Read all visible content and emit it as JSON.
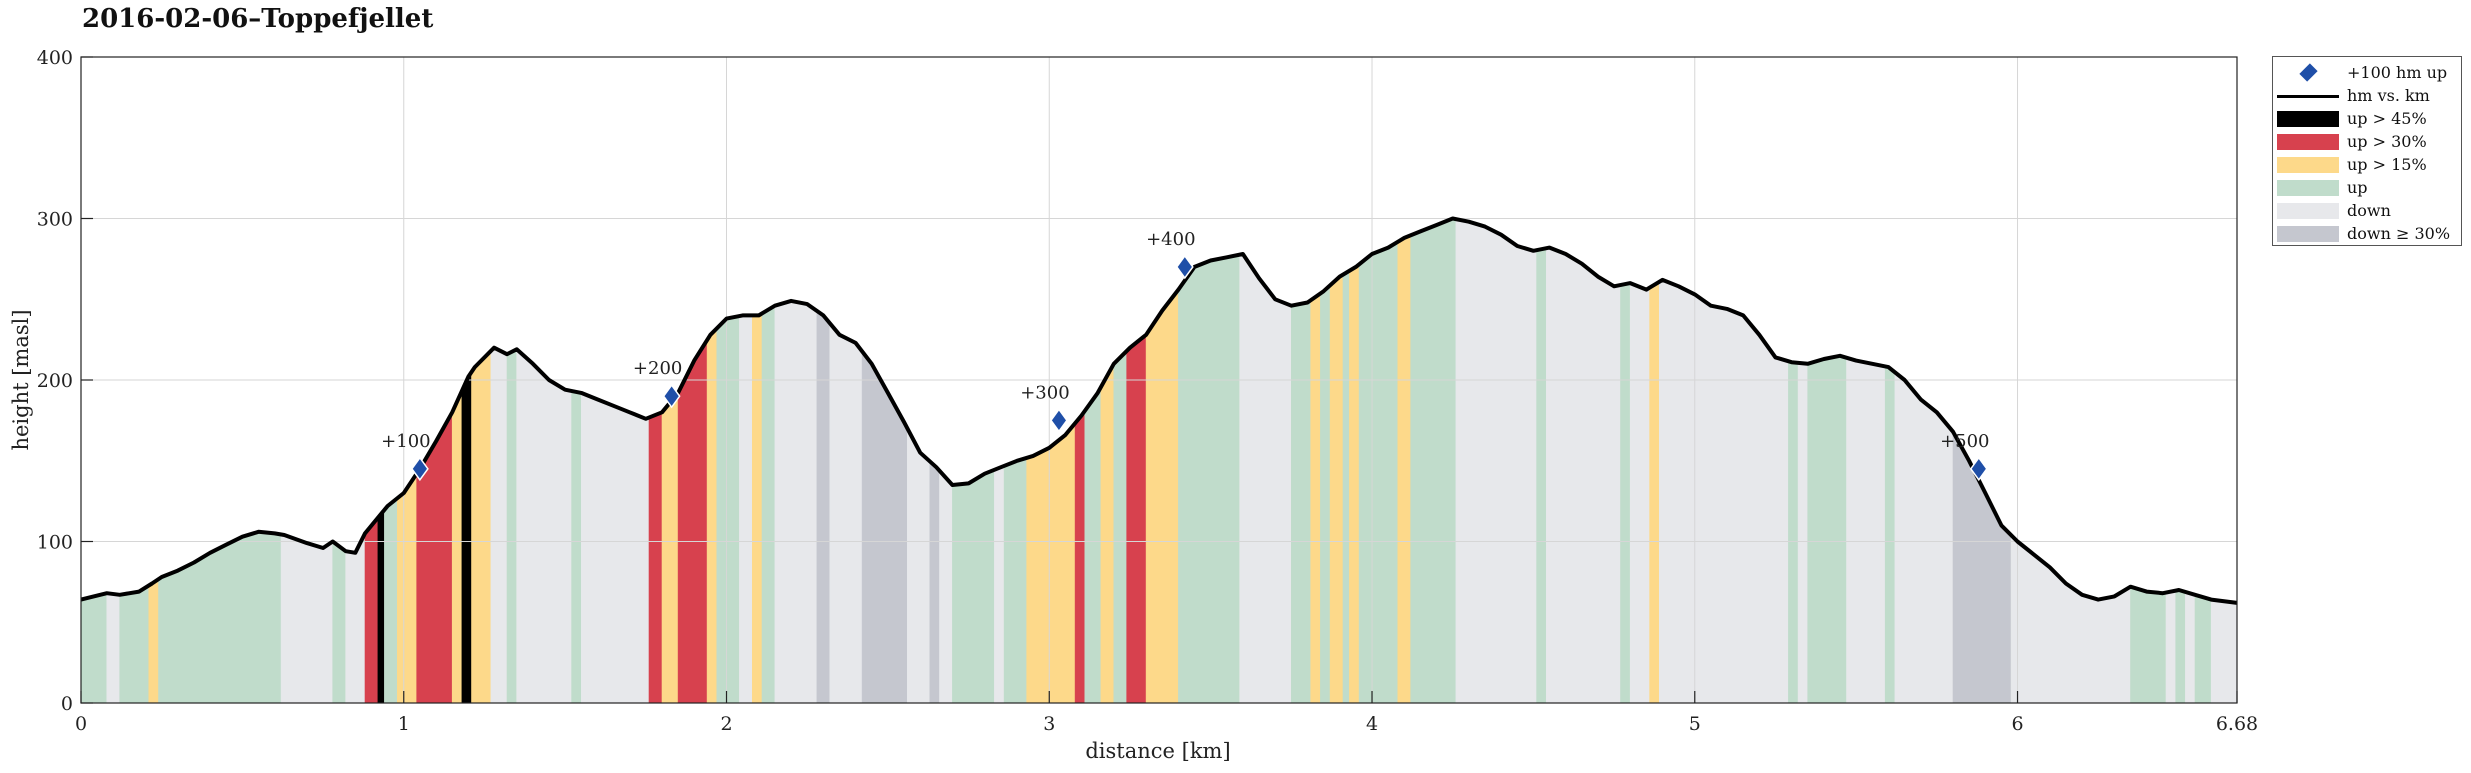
{
  "chart_data": {
    "type": "area",
    "title": "2016-02-06–Toppefjellet",
    "xlabel": "distance [km]",
    "ylabel": "height [masl]",
    "xlim": [
      0,
      6.68
    ],
    "ylim": [
      0,
      400
    ],
    "x_ticks": [
      0,
      1,
      2,
      3,
      4,
      5,
      6,
      6.68
    ],
    "x_tick_labels": [
      "0",
      "1",
      "2",
      "3",
      "4",
      "5",
      "6",
      "6.68"
    ],
    "y_ticks": [
      0,
      100,
      200,
      300,
      400
    ],
    "y_tick_labels": [
      "0",
      "100",
      "200",
      "300",
      "400"
    ],
    "grid": true,
    "legend_position": "outside-top-right",
    "legend": [
      {
        "label": "+100 hm up",
        "kind": "marker",
        "color": "#1f4fa8"
      },
      {
        "label": "hm vs. km",
        "kind": "line",
        "color": "#000000"
      },
      {
        "label": "up > 45%",
        "kind": "fill",
        "color": "#000000"
      },
      {
        "label": "up > 30%",
        "kind": "fill",
        "color": "#d7414e"
      },
      {
        "label": "up > 15%",
        "kind": "fill",
        "color": "#fdd98a"
      },
      {
        "label": "up",
        "kind": "fill",
        "color": "#c0dccb"
      },
      {
        "label": "down",
        "kind": "fill",
        "color": "#e7e8eb"
      },
      {
        "label": "down ≥ 30%",
        "kind": "fill",
        "color": "#c5c7cf"
      }
    ],
    "profile": {
      "x": [
        0,
        0.08,
        0.12,
        0.18,
        0.22,
        0.25,
        0.3,
        0.35,
        0.4,
        0.45,
        0.5,
        0.55,
        0.6,
        0.63,
        0.7,
        0.75,
        0.78,
        0.82,
        0.85,
        0.88,
        0.95,
        1.0,
        1.05,
        1.1,
        1.15,
        1.2,
        1.22,
        1.28,
        1.32,
        1.35,
        1.4,
        1.45,
        1.5,
        1.55,
        1.6,
        1.65,
        1.7,
        1.75,
        1.8,
        1.85,
        1.9,
        1.95,
        2.0,
        2.05,
        2.1,
        2.15,
        2.2,
        2.25,
        2.3,
        2.35,
        2.4,
        2.45,
        2.5,
        2.55,
        2.6,
        2.65,
        2.7,
        2.75,
        2.8,
        2.85,
        2.9,
        2.95,
        3.0,
        3.05,
        3.1,
        3.15,
        3.2,
        3.25,
        3.3,
        3.35,
        3.4,
        3.45,
        3.5,
        3.55,
        3.6,
        3.65,
        3.7,
        3.75,
        3.8,
        3.85,
        3.9,
        3.95,
        4.0,
        4.05,
        4.1,
        4.15,
        4.2,
        4.25,
        4.3,
        4.35,
        4.4,
        4.45,
        4.5,
        4.55,
        4.6,
        4.65,
        4.7,
        4.75,
        4.8,
        4.85,
        4.9,
        4.95,
        5.0,
        5.05,
        5.1,
        5.15,
        5.2,
        5.25,
        5.3,
        5.35,
        5.4,
        5.45,
        5.5,
        5.55,
        5.6,
        5.65,
        5.7,
        5.75,
        5.8,
        5.85,
        5.9,
        5.95,
        6.0,
        6.05,
        6.1,
        6.15,
        6.2,
        6.25,
        6.3,
        6.35,
        6.4,
        6.45,
        6.5,
        6.55,
        6.6,
        6.68
      ],
      "y": [
        64,
        68,
        67,
        69,
        74,
        78,
        82,
        87,
        93,
        98,
        103,
        106,
        105,
        104,
        99,
        96,
        100,
        94,
        93,
        105,
        122,
        130,
        145,
        162,
        180,
        202,
        208,
        220,
        216,
        219,
        210,
        200,
        194,
        192,
        188,
        184,
        180,
        176,
        180,
        192,
        212,
        228,
        238,
        240,
        240,
        246,
        249,
        247,
        240,
        228,
        223,
        210,
        192,
        174,
        155,
        146,
        135,
        136,
        142,
        146,
        150,
        153,
        158,
        166,
        178,
        192,
        210,
        220,
        228,
        243,
        256,
        270,
        274,
        276,
        278,
        263,
        250,
        246,
        248,
        255,
        264,
        270,
        278,
        282,
        288,
        292,
        296,
        300,
        298,
        295,
        290,
        283,
        280,
        282,
        278,
        272,
        264,
        258,
        260,
        256,
        262,
        258,
        253,
        246,
        244,
        240,
        228,
        214,
        211,
        210,
        213,
        215,
        212,
        210,
        208,
        200,
        188,
        180,
        168,
        150,
        130,
        110,
        100,
        92,
        84,
        74,
        67,
        64,
        66,
        72,
        69,
        68,
        70,
        67,
        64,
        62
      ]
    },
    "segments": [
      {
        "x0": 0.0,
        "x1": 0.08,
        "cls": "up"
      },
      {
        "x0": 0.08,
        "x1": 0.12,
        "cls": "down"
      },
      {
        "x0": 0.12,
        "x1": 0.21,
        "cls": "up"
      },
      {
        "x0": 0.21,
        "x1": 0.24,
        "cls": "up15"
      },
      {
        "x0": 0.24,
        "x1": 0.62,
        "cls": "up"
      },
      {
        "x0": 0.62,
        "x1": 0.78,
        "cls": "down"
      },
      {
        "x0": 0.78,
        "x1": 0.82,
        "cls": "up"
      },
      {
        "x0": 0.82,
        "x1": 0.88,
        "cls": "down"
      },
      {
        "x0": 0.88,
        "x1": 0.92,
        "cls": "up30"
      },
      {
        "x0": 0.92,
        "x1": 0.94,
        "cls": "up45"
      },
      {
        "x0": 0.94,
        "x1": 0.98,
        "cls": "up"
      },
      {
        "x0": 0.98,
        "x1": 1.04,
        "cls": "up15"
      },
      {
        "x0": 1.04,
        "x1": 1.15,
        "cls": "up30"
      },
      {
        "x0": 1.15,
        "x1": 1.18,
        "cls": "up15"
      },
      {
        "x0": 1.18,
        "x1": 1.21,
        "cls": "up45"
      },
      {
        "x0": 1.21,
        "x1": 1.27,
        "cls": "up15"
      },
      {
        "x0": 1.27,
        "x1": 1.32,
        "cls": "down"
      },
      {
        "x0": 1.32,
        "x1": 1.35,
        "cls": "up"
      },
      {
        "x0": 1.35,
        "x1": 1.52,
        "cls": "down"
      },
      {
        "x0": 1.52,
        "x1": 1.55,
        "cls": "up"
      },
      {
        "x0": 1.55,
        "x1": 1.76,
        "cls": "down"
      },
      {
        "x0": 1.76,
        "x1": 1.8,
        "cls": "up30"
      },
      {
        "x0": 1.8,
        "x1": 1.85,
        "cls": "up15"
      },
      {
        "x0": 1.85,
        "x1": 1.94,
        "cls": "up30"
      },
      {
        "x0": 1.94,
        "x1": 1.97,
        "cls": "up15"
      },
      {
        "x0": 1.97,
        "x1": 2.04,
        "cls": "up"
      },
      {
        "x0": 2.04,
        "x1": 2.08,
        "cls": "down"
      },
      {
        "x0": 2.08,
        "x1": 2.11,
        "cls": "up15"
      },
      {
        "x0": 2.11,
        "x1": 2.15,
        "cls": "up"
      },
      {
        "x0": 2.15,
        "x1": 2.28,
        "cls": "down"
      },
      {
        "x0": 2.28,
        "x1": 2.32,
        "cls": "down30"
      },
      {
        "x0": 2.32,
        "x1": 2.42,
        "cls": "down"
      },
      {
        "x0": 2.42,
        "x1": 2.56,
        "cls": "down30"
      },
      {
        "x0": 2.56,
        "x1": 2.63,
        "cls": "down"
      },
      {
        "x0": 2.63,
        "x1": 2.66,
        "cls": "down30"
      },
      {
        "x0": 2.66,
        "x1": 2.7,
        "cls": "down"
      },
      {
        "x0": 2.7,
        "x1": 2.83,
        "cls": "up"
      },
      {
        "x0": 2.83,
        "x1": 2.86,
        "cls": "down"
      },
      {
        "x0": 2.86,
        "x1": 2.93,
        "cls": "up"
      },
      {
        "x0": 2.93,
        "x1": 3.08,
        "cls": "up15"
      },
      {
        "x0": 3.08,
        "x1": 3.11,
        "cls": "up30"
      },
      {
        "x0": 3.11,
        "x1": 3.16,
        "cls": "up"
      },
      {
        "x0": 3.16,
        "x1": 3.2,
        "cls": "up15"
      },
      {
        "x0": 3.2,
        "x1": 3.24,
        "cls": "up"
      },
      {
        "x0": 3.24,
        "x1": 3.3,
        "cls": "up30"
      },
      {
        "x0": 3.3,
        "x1": 3.4,
        "cls": "up15"
      },
      {
        "x0": 3.4,
        "x1": 3.44,
        "cls": "up"
      },
      {
        "x0": 3.44,
        "x1": 3.59,
        "cls": "up"
      },
      {
        "x0": 3.59,
        "x1": 3.75,
        "cls": "down"
      },
      {
        "x0": 3.75,
        "x1": 3.81,
        "cls": "up"
      },
      {
        "x0": 3.81,
        "x1": 3.84,
        "cls": "up15"
      },
      {
        "x0": 3.84,
        "x1": 3.87,
        "cls": "up"
      },
      {
        "x0": 3.87,
        "x1": 3.91,
        "cls": "up15"
      },
      {
        "x0": 3.91,
        "x1": 3.93,
        "cls": "up"
      },
      {
        "x0": 3.93,
        "x1": 3.96,
        "cls": "up15"
      },
      {
        "x0": 3.96,
        "x1": 3.98,
        "cls": "up"
      },
      {
        "x0": 3.98,
        "x1": 4.1,
        "cls": "up"
      },
      {
        "x0": 4.08,
        "x1": 4.12,
        "cls": "up15"
      },
      {
        "x0": 4.12,
        "x1": 4.26,
        "cls": "up"
      },
      {
        "x0": 4.26,
        "x1": 4.51,
        "cls": "down"
      },
      {
        "x0": 4.51,
        "x1": 4.54,
        "cls": "up"
      },
      {
        "x0": 4.54,
        "x1": 4.77,
        "cls": "down"
      },
      {
        "x0": 4.77,
        "x1": 4.8,
        "cls": "up"
      },
      {
        "x0": 4.8,
        "x1": 4.86,
        "cls": "down"
      },
      {
        "x0": 4.86,
        "x1": 4.89,
        "cls": "up15"
      },
      {
        "x0": 4.89,
        "x1": 5.29,
        "cls": "down"
      },
      {
        "x0": 5.29,
        "x1": 5.32,
        "cls": "up"
      },
      {
        "x0": 5.32,
        "x1": 5.35,
        "cls": "down"
      },
      {
        "x0": 5.35,
        "x1": 5.47,
        "cls": "up"
      },
      {
        "x0": 5.47,
        "x1": 5.59,
        "cls": "down"
      },
      {
        "x0": 5.59,
        "x1": 5.62,
        "cls": "up"
      },
      {
        "x0": 5.62,
        "x1": 5.8,
        "cls": "down"
      },
      {
        "x0": 5.8,
        "x1": 5.98,
        "cls": "down30"
      },
      {
        "x0": 5.98,
        "x1": 6.35,
        "cls": "down"
      },
      {
        "x0": 6.35,
        "x1": 6.46,
        "cls": "up"
      },
      {
        "x0": 6.46,
        "x1": 6.49,
        "cls": "down"
      },
      {
        "x0": 6.49,
        "x1": 6.52,
        "cls": "up"
      },
      {
        "x0": 6.52,
        "x1": 6.55,
        "cls": "down"
      },
      {
        "x0": 6.55,
        "x1": 6.6,
        "cls": "up"
      },
      {
        "x0": 6.6,
        "x1": 6.68,
        "cls": "down"
      }
    ],
    "markers": [
      {
        "label": "+100",
        "x": 1.05,
        "y": 145
      },
      {
        "label": "+200",
        "x": 1.83,
        "y": 190
      },
      {
        "label": "+300",
        "x": 3.03,
        "y": 175
      },
      {
        "label": "+400",
        "x": 3.42,
        "y": 270
      },
      {
        "label": "+500",
        "x": 5.88,
        "y": 145
      }
    ],
    "colors": {
      "up45": "#000000",
      "up30": "#d7414e",
      "up15": "#fdd98a",
      "up": "#c0dccb",
      "down": "#e7e8eb",
      "down30": "#c5c7cf",
      "line": "#000000",
      "marker": "#1f4fa8",
      "grid": "#d6d6d6"
    }
  }
}
